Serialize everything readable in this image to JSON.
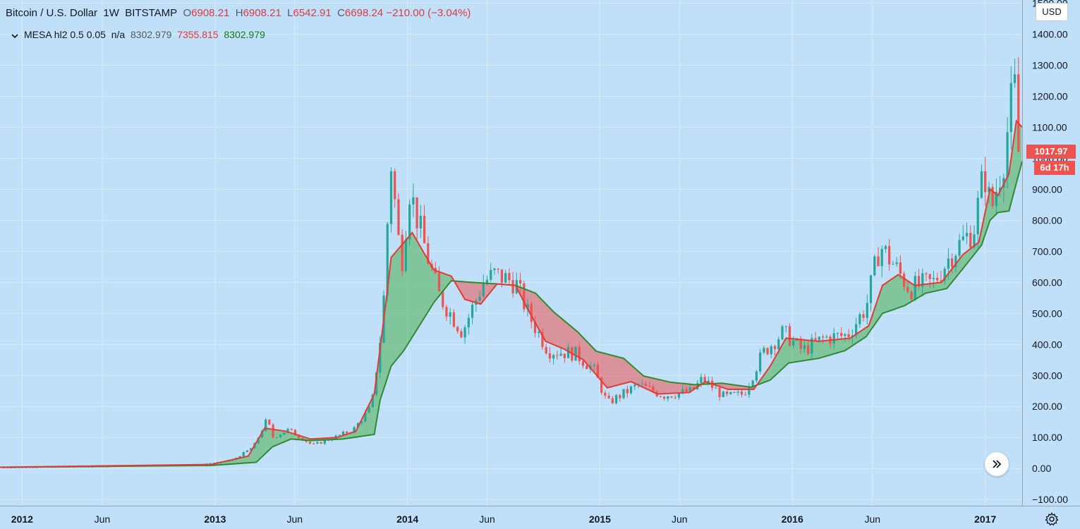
{
  "legend": {
    "symbol": "Bitcoin / U.S. Dollar",
    "interval": "1W",
    "exchange": "BITSTAMP",
    "open_label": "O",
    "open": "6908.21",
    "high_label": "H",
    "high": "6908.21",
    "low_label": "L",
    "low": "6542.91",
    "close_label": "C",
    "close": "6698.24",
    "change": "−210.00 (−3.04%)",
    "indicator_name": "MESA hl2 0.5 0.05",
    "indicator_na": "n/a",
    "indicator_v1": "8302.979",
    "indicator_v2": "7355.815",
    "indicator_v3": "8302.979"
  },
  "axis": {
    "currency": "USD",
    "price_label": "1017.97",
    "countdown": "6d 17h"
  },
  "icons": {
    "collapse": "chevron-down-icon",
    "scroll": "double-chevron-right-icon",
    "settings": "gear-icon"
  },
  "colors": {
    "background": "#bfe0f8",
    "up_candle": "#26a69a",
    "down_candle": "#ef5350",
    "mama_line": "#e53935",
    "fama_line": "#2e8b2e",
    "fill_bull": "#4caf50",
    "fill_bear": "#ef5350"
  },
  "chart_data": {
    "type": "candlestick",
    "title": "Bitcoin / U.S. Dollar",
    "ylim": [
      -120,
      1510
    ],
    "y_ticks": [
      "1500.00",
      "1400.00",
      "1300.00",
      "1200.00",
      "1100.00",
      "1000.00",
      "900.00",
      "800.00",
      "700.00",
      "600.00",
      "500.00",
      "400.00",
      "300.00",
      "200.00",
      "100.00",
      "0.00",
      "−100.00"
    ],
    "y_tick_values": [
      1500,
      1400,
      1300,
      1200,
      1100,
      1000,
      900,
      800,
      700,
      600,
      500,
      400,
      300,
      200,
      100,
      0,
      -100
    ],
    "x_ticks": [
      "2012",
      "Jun",
      "2013",
      "Jun",
      "2014",
      "Jun",
      "2015",
      "Jun",
      "2016",
      "Jun",
      "2017"
    ],
    "x_tick_dates": [
      "2012-01-01",
      "2012-06-01",
      "2013-01-01",
      "2013-06-01",
      "2014-01-01",
      "2014-06-01",
      "2015-01-01",
      "2015-06-01",
      "2016-01-01",
      "2016-06-01",
      "2017-01-01"
    ],
    "x_start": "2011-11-20",
    "x_end": "2017-03-12",
    "grid": true,
    "price_series": [
      {
        "date": "2011-12-01",
        "close": 3
      },
      {
        "date": "2012-06-01",
        "close": 6
      },
      {
        "date": "2012-12-01",
        "close": 13
      },
      {
        "date": "2013-02-01",
        "close": 25
      },
      {
        "date": "2013-03-15",
        "close": 70
      },
      {
        "date": "2013-04-10",
        "close": 160
      },
      {
        "date": "2013-04-20",
        "close": 100
      },
      {
        "date": "2013-05-20",
        "close": 125
      },
      {
        "date": "2013-07-05",
        "close": 75
      },
      {
        "date": "2013-08-15",
        "close": 100
      },
      {
        "date": "2013-09-20",
        "close": 125
      },
      {
        "date": "2013-10-25",
        "close": 200
      },
      {
        "date": "2013-11-15",
        "close": 480
      },
      {
        "date": "2013-11-30",
        "close": 1000
      },
      {
        "date": "2013-12-20",
        "close": 650
      },
      {
        "date": "2014-01-05",
        "close": 900
      },
      {
        "date": "2014-02-05",
        "close": 700
      },
      {
        "date": "2014-03-01",
        "close": 560
      },
      {
        "date": "2014-04-15",
        "close": 440
      },
      {
        "date": "2014-05-25",
        "close": 600
      },
      {
        "date": "2014-06-15",
        "close": 625
      },
      {
        "date": "2014-07-25",
        "close": 600
      },
      {
        "date": "2014-08-20",
        "close": 490
      },
      {
        "date": "2014-09-25",
        "close": 380
      },
      {
        "date": "2014-11-15",
        "close": 370
      },
      {
        "date": "2014-12-20",
        "close": 320
      },
      {
        "date": "2015-01-15",
        "close": 210
      },
      {
        "date": "2015-03-15",
        "close": 270
      },
      {
        "date": "2015-05-01",
        "close": 235
      },
      {
        "date": "2015-06-25",
        "close": 250
      },
      {
        "date": "2015-07-15",
        "close": 290
      },
      {
        "date": "2015-08-25",
        "close": 230
      },
      {
        "date": "2015-10-01",
        "close": 240
      },
      {
        "date": "2015-11-05",
        "close": 370
      },
      {
        "date": "2015-12-15",
        "close": 440
      },
      {
        "date": "2016-01-20",
        "close": 380
      },
      {
        "date": "2016-03-01",
        "close": 420
      },
      {
        "date": "2016-04-15",
        "close": 430
      },
      {
        "date": "2016-05-20",
        "close": 520
      },
      {
        "date": "2016-06-15",
        "close": 720
      },
      {
        "date": "2016-07-10",
        "close": 660
      },
      {
        "date": "2016-08-10",
        "close": 580
      },
      {
        "date": "2016-09-25",
        "close": 600
      },
      {
        "date": "2016-11-01",
        "close": 700
      },
      {
        "date": "2016-12-10",
        "close": 770
      },
      {
        "date": "2016-12-30",
        "close": 960
      },
      {
        "date": "2017-01-12",
        "close": 830
      },
      {
        "date": "2017-02-05",
        "close": 1000
      },
      {
        "date": "2017-02-25",
        "close": 1250
      },
      {
        "date": "2017-03-05",
        "close": 1020
      }
    ],
    "mama_series": [
      {
        "date": "2011-11-20",
        "value": 4
      },
      {
        "date": "2012-12-25",
        "value": 13
      },
      {
        "date": "2013-03-05",
        "value": 40
      },
      {
        "date": "2013-04-05",
        "value": 130
      },
      {
        "date": "2013-05-15",
        "value": 120
      },
      {
        "date": "2013-07-01",
        "value": 95
      },
      {
        "date": "2013-08-20",
        "value": 100
      },
      {
        "date": "2013-09-25",
        "value": 120
      },
      {
        "date": "2013-10-30",
        "value": 240
      },
      {
        "date": "2013-11-20",
        "value": 520
      },
      {
        "date": "2013-12-01",
        "value": 680
      },
      {
        "date": "2014-01-10",
        "value": 760
      },
      {
        "date": "2014-02-20",
        "value": 640
      },
      {
        "date": "2014-03-25",
        "value": 620
      },
      {
        "date": "2014-04-20",
        "value": 545
      },
      {
        "date": "2014-05-20",
        "value": 530
      },
      {
        "date": "2014-06-20",
        "value": 595
      },
      {
        "date": "2014-07-25",
        "value": 590
      },
      {
        "date": "2014-08-15",
        "value": 520
      },
      {
        "date": "2014-09-20",
        "value": 410
      },
      {
        "date": "2014-10-25",
        "value": 385
      },
      {
        "date": "2014-12-01",
        "value": 350
      },
      {
        "date": "2015-01-15",
        "value": 260
      },
      {
        "date": "2015-03-01",
        "value": 280
      },
      {
        "date": "2015-04-20",
        "value": 240
      },
      {
        "date": "2015-06-20",
        "value": 245
      },
      {
        "date": "2015-07-20",
        "value": 280
      },
      {
        "date": "2015-09-01",
        "value": 255
      },
      {
        "date": "2015-10-20",
        "value": 255
      },
      {
        "date": "2015-11-20",
        "value": 330
      },
      {
        "date": "2015-12-20",
        "value": 420
      },
      {
        "date": "2016-02-20",
        "value": 410
      },
      {
        "date": "2016-04-20",
        "value": 420
      },
      {
        "date": "2016-05-25",
        "value": 460
      },
      {
        "date": "2016-06-20",
        "value": 590
      },
      {
        "date": "2016-07-20",
        "value": 625
      },
      {
        "date": "2016-08-20",
        "value": 590
      },
      {
        "date": "2016-10-10",
        "value": 600
      },
      {
        "date": "2016-11-20",
        "value": 690
      },
      {
        "date": "2016-12-20",
        "value": 730
      },
      {
        "date": "2017-01-10",
        "value": 900
      },
      {
        "date": "2017-01-25",
        "value": 880
      },
      {
        "date": "2017-02-15",
        "value": 950
      },
      {
        "date": "2017-03-01",
        "value": 1120
      },
      {
        "date": "2017-03-12",
        "value": 1100
      }
    ],
    "fama_series": [
      {
        "date": "2011-11-20",
        "value": 4
      },
      {
        "date": "2012-12-25",
        "value": 10
      },
      {
        "date": "2013-03-20",
        "value": 20
      },
      {
        "date": "2013-04-20",
        "value": 70
      },
      {
        "date": "2013-05-25",
        "value": 95
      },
      {
        "date": "2013-07-01",
        "value": 90
      },
      {
        "date": "2013-09-01",
        "value": 95
      },
      {
        "date": "2013-10-30",
        "value": 110
      },
      {
        "date": "2013-11-10",
        "value": 220
      },
      {
        "date": "2013-12-01",
        "value": 330
      },
      {
        "date": "2013-12-25",
        "value": 380
      },
      {
        "date": "2014-02-20",
        "value": 535
      },
      {
        "date": "2014-03-25",
        "value": 605
      },
      {
        "date": "2014-05-01",
        "value": 600
      },
      {
        "date": "2014-06-20",
        "value": 595
      },
      {
        "date": "2014-07-25",
        "value": 590
      },
      {
        "date": "2014-09-01",
        "value": 565
      },
      {
        "date": "2014-10-05",
        "value": 505
      },
      {
        "date": "2014-11-20",
        "value": 440
      },
      {
        "date": "2014-12-25",
        "value": 378
      },
      {
        "date": "2015-02-15",
        "value": 355
      },
      {
        "date": "2015-03-25",
        "value": 298
      },
      {
        "date": "2015-05-15",
        "value": 278
      },
      {
        "date": "2015-07-01",
        "value": 270
      },
      {
        "date": "2015-08-20",
        "value": 275
      },
      {
        "date": "2015-10-15",
        "value": 262
      },
      {
        "date": "2015-11-20",
        "value": 285
      },
      {
        "date": "2015-12-25",
        "value": 340
      },
      {
        "date": "2016-02-20",
        "value": 355
      },
      {
        "date": "2016-04-10",
        "value": 380
      },
      {
        "date": "2016-05-20",
        "value": 425
      },
      {
        "date": "2016-06-20",
        "value": 500
      },
      {
        "date": "2016-08-01",
        "value": 525
      },
      {
        "date": "2016-09-10",
        "value": 565
      },
      {
        "date": "2016-10-20",
        "value": 580
      },
      {
        "date": "2016-11-20",
        "value": 645
      },
      {
        "date": "2016-12-25",
        "value": 720
      },
      {
        "date": "2017-01-10",
        "value": 800
      },
      {
        "date": "2017-01-25",
        "value": 825
      },
      {
        "date": "2017-02-15",
        "value": 830
      },
      {
        "date": "2017-03-01",
        "value": 920
      },
      {
        "date": "2017-03-12",
        "value": 990
      }
    ]
  }
}
